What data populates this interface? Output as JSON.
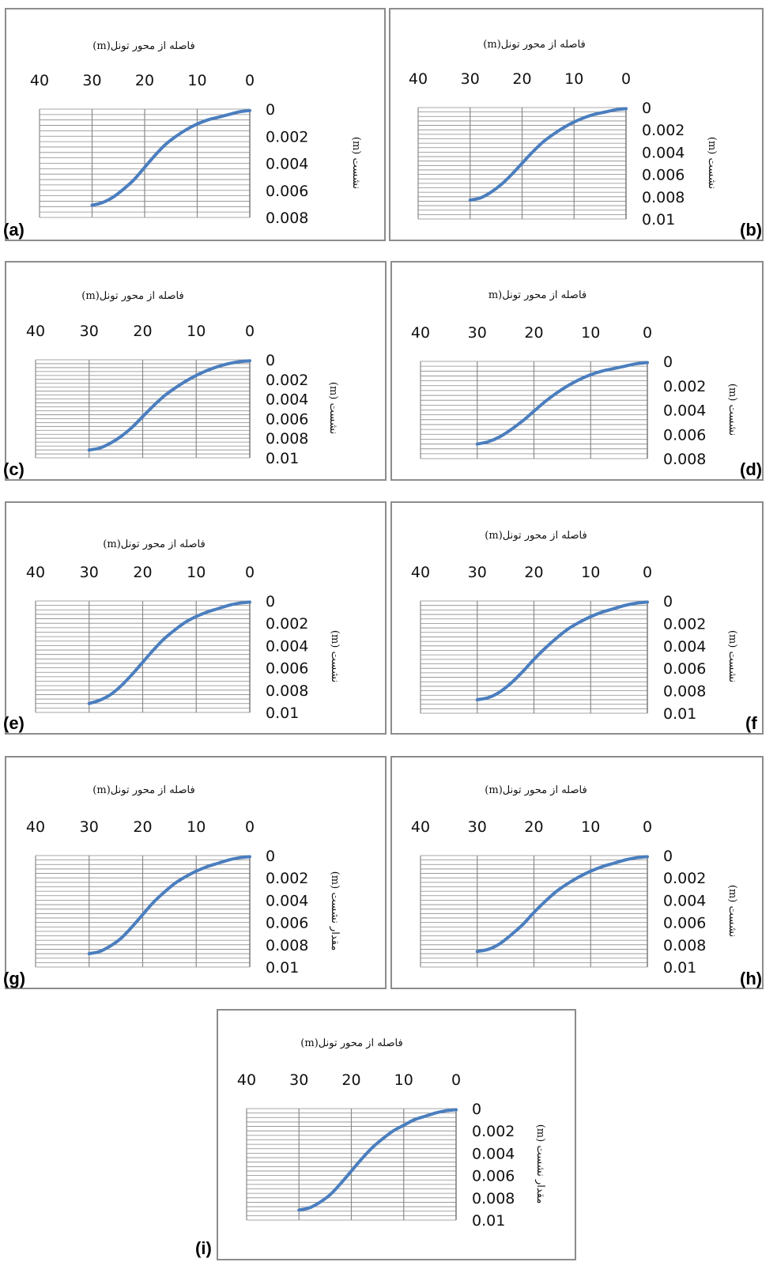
{
  "colors": {
    "series": "#4a7ebf",
    "grid": "#8a8a8a",
    "frame": "#8c8c8c"
  },
  "chart_data": [
    {
      "panel": "a",
      "label": "(a)",
      "type": "line",
      "xlabel": "فاصله از محور تونل(m)",
      "ylabel": "نشست (m)",
      "xlim": [
        40,
        0
      ],
      "ylim": [
        0.008,
        0
      ],
      "xticks": [
        "40",
        "30",
        "20",
        "10",
        "0"
      ],
      "yticks": [
        "0",
        "0.002",
        "0.004",
        "0.006",
        "0.008"
      ],
      "x": [
        30,
        28,
        26,
        24,
        22,
        20,
        18,
        16,
        14,
        12,
        10,
        8,
        6,
        4,
        2,
        0
      ],
      "y": [
        0.0071,
        0.0069,
        0.0065,
        0.0059,
        0.0052,
        0.0043,
        0.0034,
        0.0026,
        0.002,
        0.0015,
        0.0011,
        0.0008,
        0.0006,
        0.0004,
        0.0002,
        0.0001
      ]
    },
    {
      "panel": "b",
      "label": "(b)",
      "type": "line",
      "xlabel": "فاصله از محور تونل(m)",
      "ylabel": "نشست (m)",
      "xlim": [
        40,
        0
      ],
      "ylim": [
        0.01,
        0
      ],
      "xticks": [
        "40",
        "30",
        "20",
        "10",
        "0"
      ],
      "yticks": [
        "0",
        "0.002",
        "0.004",
        "0.006",
        "0.008",
        "0.01"
      ],
      "x": [
        30,
        28,
        26,
        24,
        22,
        20,
        18,
        16,
        14,
        12,
        10,
        8,
        6,
        4,
        2,
        0
      ],
      "y": [
        0.0083,
        0.0081,
        0.0076,
        0.0069,
        0.006,
        0.005,
        0.004,
        0.0031,
        0.0024,
        0.0018,
        0.0013,
        0.0009,
        0.0006,
        0.0004,
        0.0002,
        0.0001
      ]
    },
    {
      "panel": "c",
      "label": "(c)",
      "type": "line",
      "xlabel": "فاصله از محور تونل(m)",
      "ylabel": "نشست (m)",
      "xlim": [
        40,
        0
      ],
      "ylim": [
        0.01,
        0
      ],
      "xticks": [
        "40",
        "30",
        "20",
        "10",
        "0"
      ],
      "yticks": [
        "0",
        "0.002",
        "0.004",
        "0.006",
        "0.008",
        "0.01"
      ],
      "x": [
        30,
        28,
        26,
        24,
        22,
        20,
        18,
        16,
        14,
        12,
        10,
        8,
        6,
        4,
        2,
        0
      ],
      "y": [
        0.0092,
        0.009,
        0.0085,
        0.0078,
        0.0069,
        0.0058,
        0.0047,
        0.0037,
        0.0029,
        0.0022,
        0.0016,
        0.0011,
        0.0007,
        0.0004,
        0.0002,
        0.0001
      ]
    },
    {
      "panel": "d",
      "label": "(d)",
      "type": "line",
      "xlabel": "فاصله از محور تونل(m",
      "ylabel": "نشست (m)",
      "xlim": [
        40,
        0
      ],
      "ylim": [
        0.008,
        0
      ],
      "xticks": [
        "40",
        "30",
        "20",
        "10",
        "0"
      ],
      "yticks": [
        "0",
        "0.002",
        "0.004",
        "0.006",
        "0.008"
      ],
      "x": [
        30,
        28,
        26,
        24,
        22,
        20,
        18,
        16,
        14,
        12,
        10,
        8,
        6,
        4,
        2,
        0
      ],
      "y": [
        0.0068,
        0.0066,
        0.0062,
        0.0056,
        0.0049,
        0.0041,
        0.0033,
        0.0026,
        0.002,
        0.0015,
        0.0011,
        0.0008,
        0.0006,
        0.0004,
        0.0002,
        0.0001
      ]
    },
    {
      "panel": "e",
      "label": "(e)",
      "type": "line",
      "xlabel": "فاصله از محور تونل(m)",
      "ylabel": "نشست (m)",
      "xlim": [
        40,
        0
      ],
      "ylim": [
        0.01,
        0
      ],
      "xticks": [
        "40",
        "30",
        "20",
        "10",
        "0"
      ],
      "yticks": [
        "0",
        "0.002",
        "0.004",
        "0.006",
        "0.008",
        "0.01"
      ],
      "x": [
        30,
        28,
        26,
        24,
        22,
        20,
        18,
        16,
        14,
        12,
        10,
        8,
        6,
        4,
        2,
        0
      ],
      "y": [
        0.0092,
        0.0089,
        0.0084,
        0.0076,
        0.0066,
        0.0055,
        0.0044,
        0.0034,
        0.0026,
        0.0019,
        0.0014,
        0.001,
        0.0007,
        0.0004,
        0.0002,
        0.0001
      ]
    },
    {
      "panel": "f",
      "label": "(f",
      "type": "line",
      "xlabel": "فاصله از محور تونل(m)",
      "ylabel": "نشست (m)",
      "xlim": [
        40,
        0
      ],
      "ylim": [
        0.01,
        0
      ],
      "xticks": [
        "40",
        "30",
        "20",
        "10",
        "0"
      ],
      "yticks": [
        "0",
        "0.002",
        "0.004",
        "0.006",
        "0.008",
        "0.01"
      ],
      "x": [
        30,
        28,
        26,
        24,
        22,
        20,
        18,
        16,
        14,
        12,
        10,
        8,
        6,
        4,
        2,
        0
      ],
      "y": [
        0.0088,
        0.0086,
        0.0081,
        0.0073,
        0.0063,
        0.0052,
        0.0042,
        0.0033,
        0.0025,
        0.0019,
        0.0014,
        0.001,
        0.0007,
        0.0004,
        0.0002,
        0.0001
      ]
    },
    {
      "panel": "g",
      "label": "(g)",
      "type": "line",
      "xlabel": "فاصله از محور تونل(m)",
      "ylabel": "مقدار نشست (m)",
      "xlim": [
        40,
        0
      ],
      "ylim": [
        0.01,
        0
      ],
      "xticks": [
        "40",
        "30",
        "20",
        "10",
        "0"
      ],
      "yticks": [
        "0",
        "0.002",
        "0.004",
        "0.006",
        "0.008",
        "0.01"
      ],
      "x": [
        30,
        28,
        26,
        24,
        22,
        20,
        18,
        16,
        14,
        12,
        10,
        8,
        6,
        4,
        2,
        0
      ],
      "y": [
        0.0088,
        0.0086,
        0.0081,
        0.0074,
        0.0064,
        0.0053,
        0.0042,
        0.0033,
        0.0025,
        0.0019,
        0.0014,
        0.001,
        0.0007,
        0.0004,
        0.0002,
        0.0001
      ]
    },
    {
      "panel": "h",
      "label": "(h)",
      "type": "line",
      "xlabel": "فاصله از محور تونل(m)",
      "ylabel": "نشست (m)",
      "xlim": [
        40,
        0
      ],
      "ylim": [
        0.01,
        0
      ],
      "xticks": [
        "40",
        "30",
        "20",
        "10",
        "0"
      ],
      "yticks": [
        "0",
        "0.002",
        "0.004",
        "0.006",
        "0.008",
        "0.01"
      ],
      "x": [
        30,
        28,
        26,
        24,
        22,
        20,
        18,
        16,
        14,
        12,
        10,
        8,
        6,
        4,
        2,
        0
      ],
      "y": [
        0.0086,
        0.0084,
        0.0079,
        0.0071,
        0.0062,
        0.0051,
        0.0041,
        0.0032,
        0.0025,
        0.0019,
        0.0014,
        0.001,
        0.0007,
        0.0004,
        0.0002,
        0.0001
      ]
    },
    {
      "panel": "i",
      "label": "(i)",
      "type": "line",
      "xlabel": "فاصله از محور تونل(m)",
      "ylabel": "مقدار نشست (m)",
      "xlim": [
        40,
        0
      ],
      "ylim": [
        0.01,
        0
      ],
      "xticks": [
        "40",
        "30",
        "20",
        "10",
        "0"
      ],
      "yticks": [
        "0",
        "0.002",
        "0.004",
        "0.006",
        "0.008",
        "0.01"
      ],
      "x": [
        30,
        28,
        26,
        24,
        22,
        20,
        18,
        16,
        14,
        12,
        10,
        8,
        6,
        4,
        2,
        0
      ],
      "y": [
        0.0091,
        0.0089,
        0.0084,
        0.0077,
        0.0067,
        0.0056,
        0.0045,
        0.0035,
        0.0027,
        0.002,
        0.0015,
        0.001,
        0.0007,
        0.0004,
        0.0002,
        0.0001
      ]
    }
  ]
}
